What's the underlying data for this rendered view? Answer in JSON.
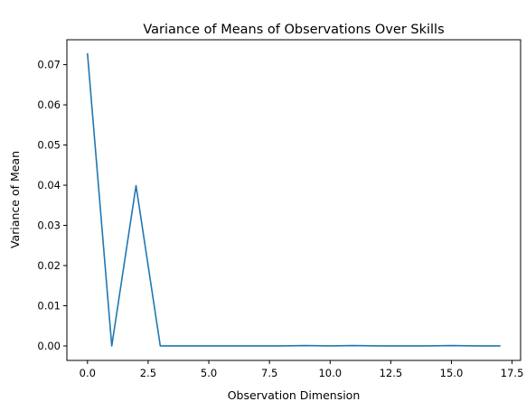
{
  "chart_data": {
    "type": "line",
    "title": "Variance of Means of Observations Over Skills",
    "xlabel": "Observation Dimension",
    "ylabel": "Variance of Mean",
    "xlim": [
      -0.85,
      17.85
    ],
    "ylim": [
      -0.0036,
      0.0762
    ],
    "xticks": [
      0.0,
      2.5,
      5.0,
      7.5,
      10.0,
      12.5,
      15.0,
      17.5
    ],
    "xtick_labels": [
      "0.0",
      "2.5",
      "5.0",
      "7.5",
      "10.0",
      "12.5",
      "15.0",
      "17.5"
    ],
    "yticks": [
      0.0,
      0.01,
      0.02,
      0.03,
      0.04,
      0.05,
      0.06,
      0.07
    ],
    "ytick_labels": [
      "0.00",
      "0.01",
      "0.02",
      "0.03",
      "0.04",
      "0.05",
      "0.06",
      "0.07"
    ],
    "grid": false,
    "series": [
      {
        "color": "#1f77b4",
        "x": [
          0,
          1,
          2,
          3,
          4,
          5,
          6,
          7,
          8,
          9,
          10,
          11,
          12,
          13,
          14,
          15,
          16,
          17
        ],
        "values": [
          0.0727,
          0.0,
          0.0399,
          0.0,
          0.0,
          0.0,
          0.0,
          0.0,
          0.0,
          0.0001,
          0.0,
          0.0001,
          0.0,
          0.0,
          0.0,
          0.0001,
          0.0,
          0.0
        ]
      }
    ]
  }
}
